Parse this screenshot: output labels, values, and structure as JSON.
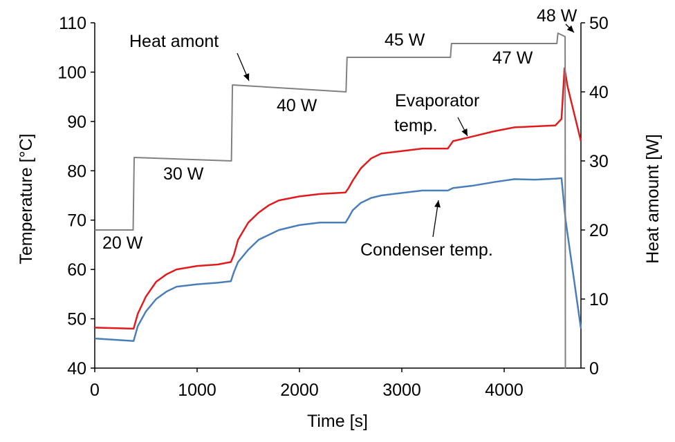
{
  "chart_data": {
    "type": "line",
    "xlabel": "Time [s]",
    "ylabel_left": "Temperature [°C]",
    "ylabel_right": "Heat amount [W]",
    "xlim": [
      0,
      4750
    ],
    "ylim_left": [
      40,
      110
    ],
    "ylim_right": [
      0,
      50
    ],
    "x_ticks": [
      0,
      1000,
      2000,
      3000,
      4000
    ],
    "y_ticks_left": [
      40,
      50,
      60,
      70,
      80,
      90,
      100,
      110
    ],
    "y_ticks_right": [
      0,
      10,
      20,
      30,
      40,
      50
    ],
    "grid": false,
    "legend": "none",
    "series": [
      {
        "name": "Evaporator temp.",
        "axis": "left",
        "color": "#e31a1c",
        "x": [
          0,
          380,
          420,
          500,
          600,
          700,
          800,
          1000,
          1200,
          1330,
          1360,
          1400,
          1500,
          1600,
          1700,
          1800,
          2000,
          2200,
          2450,
          2480,
          2520,
          2600,
          2700,
          2800,
          3000,
          3200,
          3450,
          3500,
          3700,
          3900,
          4100,
          4300,
          4500,
          4560,
          4590,
          4620,
          4750
        ],
        "y": [
          48.2,
          48,
          51,
          54.5,
          57.5,
          59,
          60,
          60.7,
          61,
          61.5,
          63,
          66,
          69.5,
          71.5,
          73,
          74,
          74.8,
          75.3,
          75.6,
          76.5,
          78,
          80.5,
          82.5,
          83.5,
          84,
          84.5,
          84.5,
          86,
          87,
          88,
          88.8,
          89,
          89.2,
          90.5,
          100.8,
          97,
          86
        ]
      },
      {
        "name": "Condenser temp.",
        "axis": "left",
        "color": "#4a7ebb",
        "x": [
          0,
          380,
          420,
          500,
          600,
          700,
          800,
          1000,
          1200,
          1330,
          1360,
          1400,
          1500,
          1600,
          1700,
          1800,
          2000,
          2200,
          2450,
          2480,
          2520,
          2600,
          2700,
          2800,
          3000,
          3200,
          3450,
          3500,
          3700,
          3900,
          4100,
          4300,
          4500,
          4560,
          4600,
          4750
        ],
        "y": [
          46,
          45.5,
          48.5,
          51.5,
          54,
          55.5,
          56.5,
          57,
          57.3,
          57.6,
          59.5,
          61.5,
          64,
          66,
          67,
          68,
          69,
          69.5,
          69.5,
          70.5,
          72,
          73.5,
          74.5,
          75,
          75.5,
          76,
          76,
          76.5,
          77,
          77.7,
          78.3,
          78.2,
          78.4,
          78.5,
          70,
          48
        ]
      },
      {
        "name": "Heat amount",
        "axis": "right",
        "color": "#808080",
        "x": [
          0,
          375,
          385,
          1335,
          1345,
          2455,
          2465,
          3475,
          3485,
          4515,
          4525,
          4595,
          4598,
          4600
        ],
        "y": [
          20,
          20,
          30.5,
          30,
          41,
          40,
          45,
          45,
          47,
          47,
          48.5,
          48,
          0,
          0
        ]
      }
    ],
    "annotations": {
      "heat_amont": "Heat amont",
      "w20": "20 W",
      "w30": "30 W",
      "w40": "40 W",
      "w45": "45 W",
      "w47": "47 W",
      "w48": "48 W",
      "evap_line1": "Evaporator",
      "evap_line2": "temp.",
      "cond": "Condenser temp."
    }
  }
}
